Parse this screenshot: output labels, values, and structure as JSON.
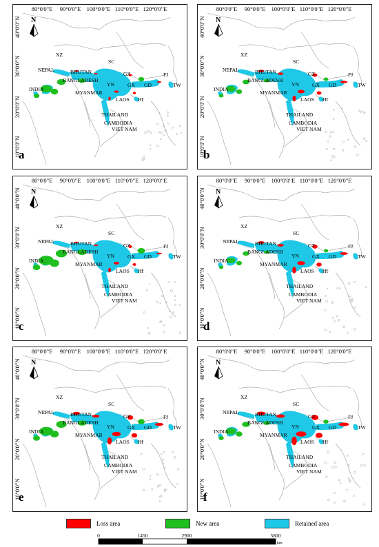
{
  "ticks_top": [
    "80°0'0\"E",
    "90°0'0\"E",
    "100°0'0\"E",
    "110°0'0\"E",
    "120°0'0\"E"
  ],
  "ticks_left": [
    "40°0'0\"N",
    "30°0'0\"N",
    "20°0'0\"N",
    "10°0'0\"N",
    "0°0'0\""
  ],
  "north_label": "N",
  "places": {
    "xz": "XZ",
    "sc": "SC",
    "nepal": "NEPAL",
    "bhutan": "BHUTAN",
    "gz": "GZ",
    "fj": "FJ",
    "india": "INDIA",
    "bangladesh": "BANGLADESH",
    "yn": "YN",
    "gx": "GX",
    "gd": "GD",
    "tw": "TW",
    "myanmar": "MYANMAR",
    "laos": "LAOS",
    "hi": "HI",
    "thailand": "THAILAND",
    "cambodia": "CAMBODIA",
    "vietnam": "VIET NAM"
  },
  "panels": [
    {
      "letter": "a",
      "loss": 0.15,
      "new": 0.55
    },
    {
      "letter": "b",
      "loss": 0.45,
      "new": 0.35
    },
    {
      "letter": "c",
      "loss": 0.25,
      "new": 0.85
    },
    {
      "letter": "d",
      "loss": 0.55,
      "new": 0.3
    },
    {
      "letter": "e",
      "loss": 0.65,
      "new": 0.75
    },
    {
      "letter": "f",
      "loss": 0.85,
      "new": 0.45
    }
  ],
  "legend": [
    {
      "label": "Loss area",
      "color": "#ff0000"
    },
    {
      "label": "New area",
      "color": "#1fbf1f"
    },
    {
      "label": "Retained area",
      "color": "#1ec8e6"
    }
  ],
  "scale_bar": {
    "labels": [
      "0",
      "1450",
      "2900",
      "5800"
    ],
    "unit": "km"
  }
}
